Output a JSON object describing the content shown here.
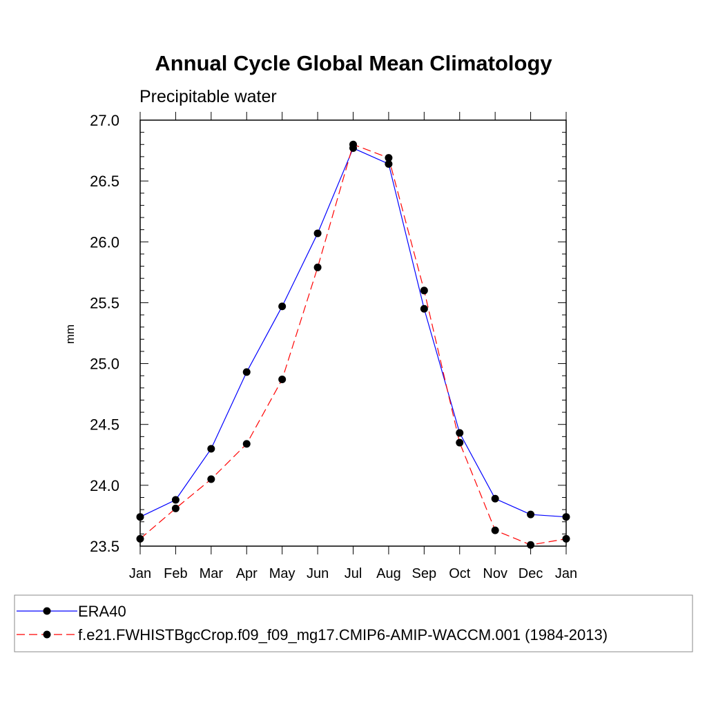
{
  "chart_data": {
    "type": "line",
    "title": "Annual Cycle Global Mean Climatology",
    "subtitle": "Precipitable water",
    "xlabel": "",
    "ylabel": "mm",
    "categories": [
      "Jan",
      "Feb",
      "Mar",
      "Apr",
      "May",
      "Jun",
      "Jul",
      "Aug",
      "Sep",
      "Oct",
      "Nov",
      "Dec",
      "Jan"
    ],
    "ylim": [
      23.5,
      27.0
    ],
    "yticks": [
      "23.5",
      "24.0",
      "24.5",
      "25.0",
      "25.5",
      "26.0",
      "26.5",
      "27.0"
    ],
    "series": [
      {
        "name": "ERA40",
        "color": "#0000ff",
        "dash": "solid",
        "values": [
          23.74,
          23.88,
          24.3,
          24.93,
          25.47,
          26.07,
          26.77,
          26.64,
          25.45,
          24.43,
          23.89,
          23.76,
          23.74
        ]
      },
      {
        "name": "f.e21.FWHISTBgcCrop.f09_f09_mg17.CMIP6-AMIP-WACCM.001 (1984-2013)",
        "color": "#ff0000",
        "dash": "dashed",
        "values": [
          23.56,
          23.81,
          24.05,
          24.34,
          24.87,
          25.79,
          26.8,
          26.69,
          25.6,
          24.35,
          23.63,
          23.51,
          23.56
        ]
      }
    ],
    "legend_position": "bottom"
  }
}
